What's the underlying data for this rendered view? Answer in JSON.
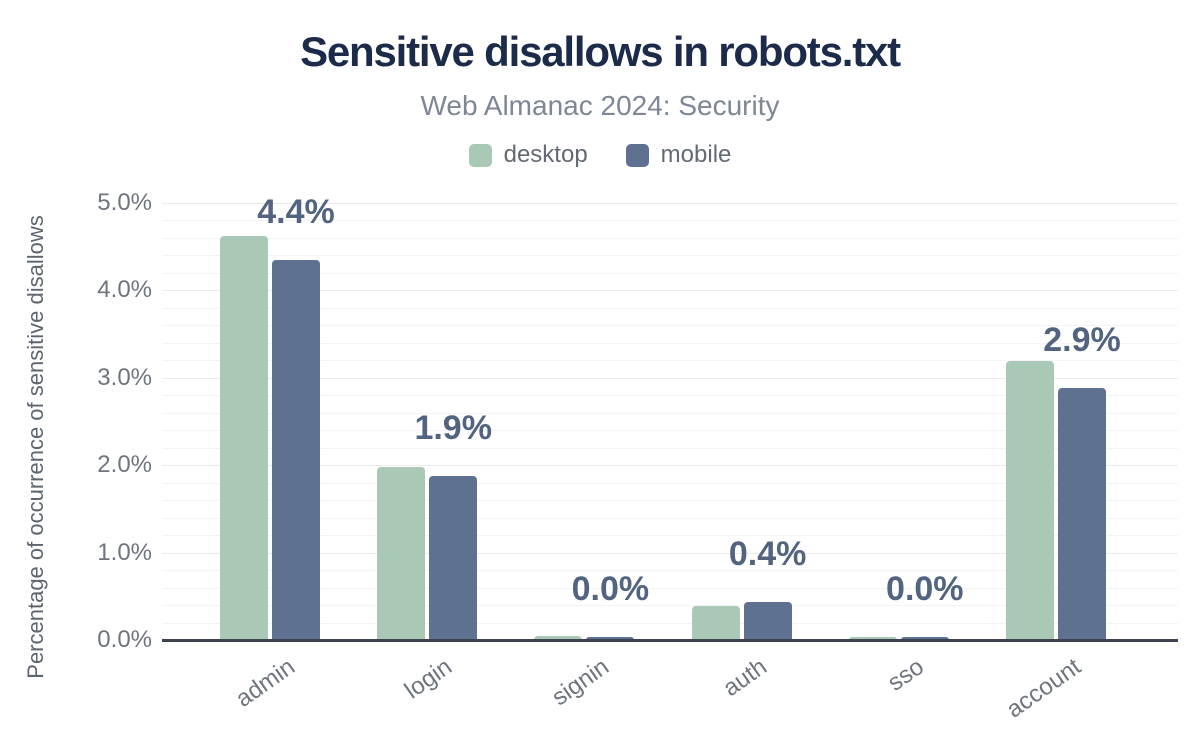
{
  "header": {
    "title": "Sensitive disallows in robots.txt",
    "subtitle": "Web Almanac 2024: Security"
  },
  "legend": [
    {
      "label": "desktop",
      "color": "#a9c9b6"
    },
    {
      "label": "mobile",
      "color": "#5e7190"
    }
  ],
  "colors": {
    "title_navy": "#1d2b4a",
    "desktop_green": "#a9c9b6",
    "mobile_slate": "#5e7190",
    "value_label": "#52647f",
    "axis_gray": "#6f757e",
    "axis_line": "#3c434e"
  },
  "chart_data": {
    "type": "bar",
    "title": "Sensitive disallows in robots.txt",
    "subtitle": "Web Almanac 2024: Security",
    "categories": [
      "admin",
      "login",
      "signin",
      "auth",
      "sso",
      "account"
    ],
    "series": [
      {
        "name": "desktop",
        "color": "#a9c9b6",
        "values": [
          4.62,
          1.98,
          0.05,
          0.39,
          0.03,
          3.19
        ]
      },
      {
        "name": "mobile",
        "color": "#5e7190",
        "values": [
          4.35,
          1.88,
          0.03,
          0.44,
          0.03,
          2.88
        ]
      }
    ],
    "bar_labels": [
      "4.4%",
      "1.9%",
      "0.0%",
      "0.4%",
      "0.0%",
      "2.9%"
    ],
    "labeled_series": "mobile",
    "xlabel": "",
    "ylabel": "Percentage of occurrence of sensitive disallows",
    "y_ticks": [
      "0.0%",
      "1.0%",
      "2.0%",
      "3.0%",
      "4.0%",
      "5.0%"
    ],
    "ylim": [
      0,
      5
    ],
    "major_grid_step": 1.0,
    "minor_grid_step": 0.2,
    "grid": true,
    "legend_position": "top"
  }
}
